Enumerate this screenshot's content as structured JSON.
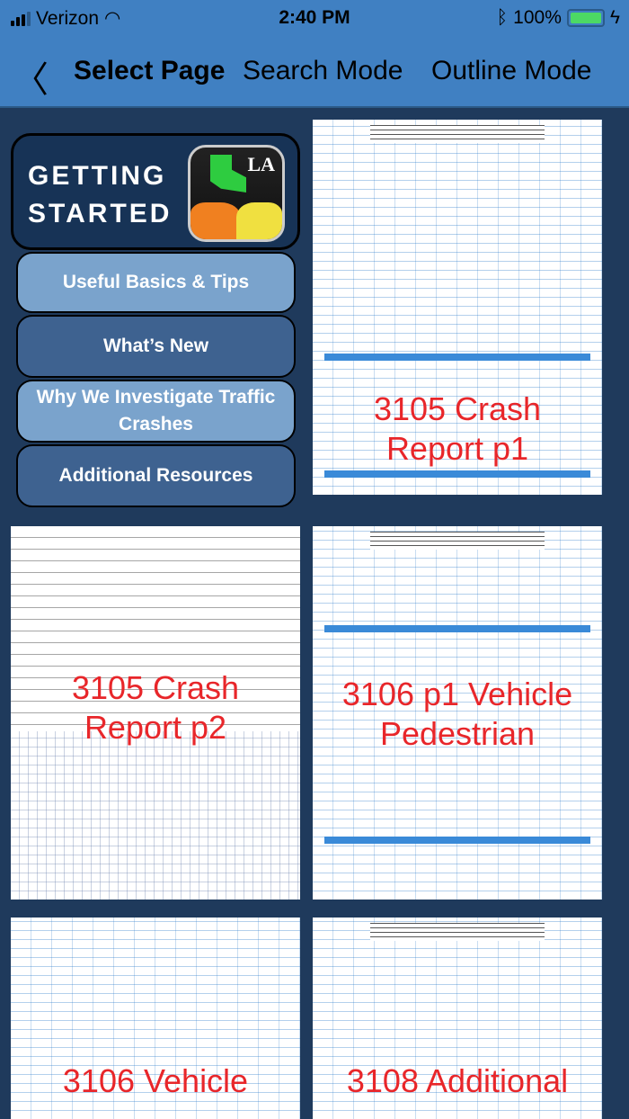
{
  "status": {
    "carrier": "Verizon",
    "time": "2:40 PM",
    "battery": "100%",
    "signal_bars": 3
  },
  "nav": {
    "back_icon": "chevron-left",
    "tabs": [
      "Select Page",
      "Search Mode",
      "Outline Mode"
    ],
    "selected": "Select Page"
  },
  "getting_started": {
    "title_line1": "GETTING",
    "title_line2": "STARTED",
    "logo_text": "LA",
    "menu": [
      "Useful Basics & Tips",
      "What’s New",
      "Why We Investigate Traffic Crashes",
      "Additional Resources"
    ]
  },
  "pages": [
    {
      "label_line1": "3105 Crash",
      "label_line2": "Report p1"
    },
    {
      "label_line1": "3105 Crash",
      "label_line2": "Report p2"
    },
    {
      "label_line1": "3106 p1 Vehicle",
      "label_line2": "Pedestrian"
    },
    {
      "label_line1": "3106 Vehicle",
      "label_line2": ""
    },
    {
      "label_line1": "3108 Additional",
      "label_line2": ""
    }
  ],
  "colors": {
    "nav": "#4080c2",
    "background": "#1f3a5c",
    "label": "#e8262a"
  }
}
